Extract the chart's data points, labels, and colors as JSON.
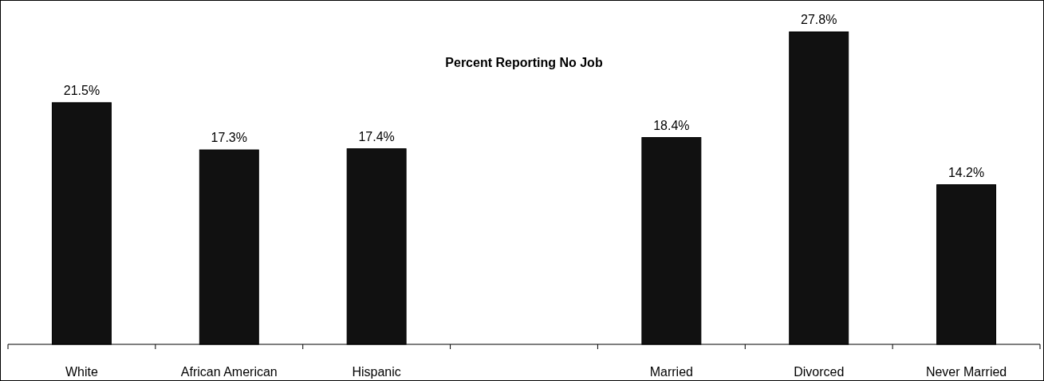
{
  "chart_data": {
    "type": "bar",
    "title": "Percent Reporting No Job",
    "categories": [
      "White",
      "African American",
      "Hispanic",
      null,
      "Married",
      "Divorced",
      "Never Married"
    ],
    "values": [
      21.5,
      17.3,
      17.4,
      null,
      18.4,
      27.8,
      14.2
    ],
    "value_labels": [
      "21.5%",
      "17.3%",
      "17.4%",
      null,
      "18.4%",
      "27.8%",
      "14.2%"
    ],
    "color": "#111111"
  }
}
